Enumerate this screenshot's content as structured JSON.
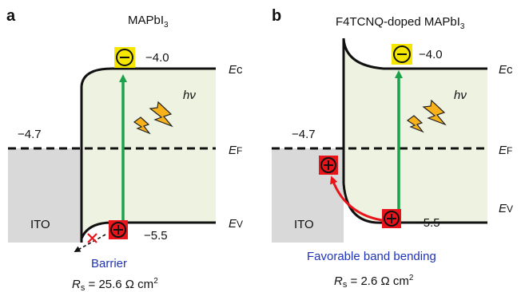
{
  "panels": [
    {
      "letter": "a",
      "title_main": "MAPbI",
      "title_sub": "3",
      "title_tail": "",
      "cb_energy": "−4.0",
      "vb_energy": "−5.5",
      "fermi_energy": "−4.7",
      "photon_label": "hν",
      "ito_label": "ITO",
      "ec_main": "E",
      "ec_sub": "c",
      "ef_main": "E",
      "ef_sub": "F",
      "ev_main": "E",
      "ev_sub": "V",
      "interface_label": "Barrier",
      "rs_label": "R",
      "rs_sub": "s",
      "rs_value": " = 25.6 Ω cm",
      "rs_exp": "2"
    },
    {
      "letter": "b",
      "title_main": "F4TCNQ-doped MAPbI",
      "title_sub": "3",
      "title_tail": "",
      "cb_energy": "−4.0",
      "vb_energy": "−5.5",
      "fermi_energy": "−4.7",
      "photon_label": "hν",
      "ito_label": "ITO",
      "ec_main": "E",
      "ec_sub": "c",
      "ef_main": "E",
      "ef_sub": "F",
      "ev_main": "E",
      "ev_sub": "V",
      "interface_label": "Favorable band bending",
      "rs_label": "R",
      "rs_sub": "s",
      "rs_value": " = 2.6 Ω cm",
      "rs_exp": "2"
    }
  ],
  "colors": {
    "perovskite_fill": "#eef2e0",
    "ito_fill": "#d9d9d9",
    "excitation_arrow": "#1aa34a",
    "hole_transfer_arrow": "#e8141a",
    "electron": "#f5e600",
    "hole": "#e8141a",
    "photon": "#f7b21b",
    "interface_text": "#1f33b8"
  }
}
